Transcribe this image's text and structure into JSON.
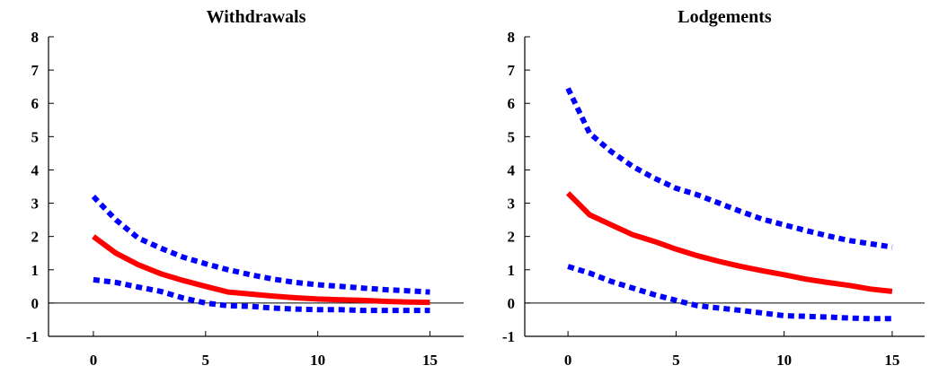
{
  "chart_data": [
    {
      "type": "line",
      "title": "Withdrawals",
      "xlim": [
        -2,
        16.5
      ],
      "ylim": [
        -1,
        8
      ],
      "x_ticks": [
        0,
        5,
        10,
        15
      ],
      "y_ticks": [
        -1,
        0,
        1,
        2,
        3,
        4,
        5,
        6,
        7,
        8
      ],
      "zero_line": true,
      "grid": false,
      "x": [
        0,
        1,
        2,
        3,
        4,
        5,
        6,
        7,
        8,
        9,
        10,
        11,
        12,
        13,
        14,
        15
      ],
      "series": [
        {
          "role": "estimate",
          "style": "solid",
          "color": "#ff0000",
          "values": [
            2.0,
            1.5,
            1.15,
            0.88,
            0.68,
            0.5,
            0.33,
            0.27,
            0.21,
            0.16,
            0.12,
            0.1,
            0.08,
            0.05,
            0.03,
            0.02
          ]
        },
        {
          "role": "upper band",
          "style": "dotted",
          "color": "#0000ff",
          "values": [
            3.2,
            2.5,
            1.95,
            1.65,
            1.38,
            1.18,
            1.0,
            0.85,
            0.72,
            0.62,
            0.55,
            0.5,
            0.45,
            0.4,
            0.37,
            0.33
          ]
        },
        {
          "role": "lower band",
          "style": "dotted",
          "color": "#0000ff",
          "values": [
            0.7,
            0.62,
            0.48,
            0.35,
            0.15,
            0.0,
            -0.08,
            -0.1,
            -0.15,
            -0.18,
            -0.2,
            -0.2,
            -0.22,
            -0.22,
            -0.22,
            -0.22
          ]
        }
      ]
    },
    {
      "type": "line",
      "title": "Lodgements",
      "xlim": [
        -2,
        16.5
      ],
      "ylim": [
        -1,
        8
      ],
      "x_ticks": [
        0,
        5,
        10,
        15
      ],
      "y_ticks": [
        -1,
        0,
        1,
        2,
        3,
        4,
        5,
        6,
        7,
        8
      ],
      "zero_line": true,
      "grid": false,
      "x": [
        0,
        1,
        2,
        3,
        4,
        5,
        6,
        7,
        8,
        9,
        10,
        11,
        12,
        13,
        14,
        15
      ],
      "series": [
        {
          "role": "estimate",
          "style": "solid",
          "color": "#ff0000",
          "values": [
            3.3,
            2.65,
            2.35,
            2.05,
            1.85,
            1.62,
            1.42,
            1.25,
            1.1,
            0.97,
            0.85,
            0.72,
            0.62,
            0.53,
            0.42,
            0.35
          ]
        },
        {
          "role": "upper band",
          "style": "dotted",
          "color": "#0000ff",
          "values": [
            6.45,
            5.1,
            4.55,
            4.1,
            3.75,
            3.45,
            3.25,
            3.0,
            2.75,
            2.52,
            2.35,
            2.18,
            2.02,
            1.88,
            1.78,
            1.68
          ]
        },
        {
          "role": "lower band",
          "style": "dotted",
          "color": "#0000ff",
          "values": [
            1.1,
            0.9,
            0.65,
            0.45,
            0.25,
            0.08,
            -0.08,
            -0.15,
            -0.22,
            -0.3,
            -0.38,
            -0.4,
            -0.42,
            -0.45,
            -0.47,
            -0.47
          ]
        }
      ]
    }
  ]
}
